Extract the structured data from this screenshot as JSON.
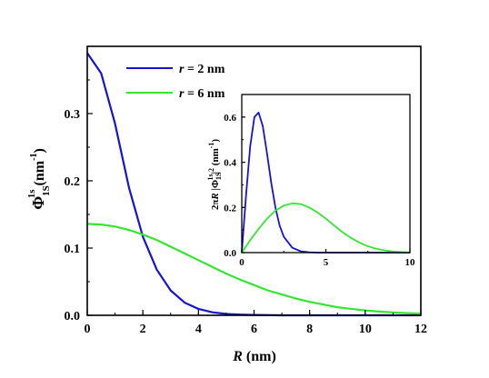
{
  "chart_data": [
    {
      "type": "line",
      "xlabel_italic": "R",
      "xlabel_rest": " (nm)",
      "ylabel_base": "Φ",
      "ylabel_sub": "1S",
      "ylabel_sup": "1s",
      "ylabel_unit_open": " (nm",
      "ylabel_unit_sup": "-1",
      "ylabel_unit_close": ")",
      "xlim": [
        0,
        12
      ],
      "ylim": [
        0,
        0.4
      ],
      "xticks": [
        "0",
        "2",
        "4",
        "6",
        "8",
        "10",
        "12"
      ],
      "yticks": [
        "0.0",
        "0.1",
        "0.2",
        "0.3"
      ],
      "legend_position": "top-center",
      "series": [
        {
          "name_italic": "r",
          "name_rest": " = 2 nm",
          "color": "#1414d2",
          "x": [
            0,
            0.5,
            1,
            1.5,
            2,
            2.5,
            3,
            3.5,
            4,
            4.5,
            5,
            5.5,
            6,
            7,
            8,
            9,
            10,
            11,
            12
          ],
          "y": [
            0.39,
            0.36,
            0.285,
            0.19,
            0.117,
            0.068,
            0.037,
            0.019,
            0.0095,
            0.0045,
            0.002,
            0.001,
            0.0005,
            0,
            0,
            0,
            0,
            0,
            0
          ]
        },
        {
          "name_italic": "r",
          "name_rest": " = 6 nm",
          "color": "#32e632",
          "x": [
            0,
            0.5,
            1,
            1.5,
            2,
            2.5,
            3,
            3.5,
            4,
            4.5,
            5,
            5.5,
            6,
            6.5,
            7,
            7.5,
            8,
            8.5,
            9,
            9.5,
            10,
            10.5,
            11,
            11.5,
            12
          ],
          "y": [
            0.136,
            0.135,
            0.132,
            0.127,
            0.12,
            0.112,
            0.102,
            0.092,
            0.082,
            0.072,
            0.062,
            0.053,
            0.045,
            0.037,
            0.031,
            0.025,
            0.02,
            0.016,
            0.012,
            0.0095,
            0.0073,
            0.0056,
            0.0043,
            0.0033,
            0.0025
          ]
        }
      ]
    },
    {
      "type": "line",
      "inset": true,
      "ylabel_prefix": "2π",
      "ylabel_italic": "R",
      "ylabel_mid": " |Φ",
      "ylabel_sub": "1S",
      "ylabel_sup": "1s",
      "ylabel_bar_sup": "|",
      "ylabel_sq": "2",
      "ylabel_unit_open": " (nm",
      "ylabel_unit_sup": "-1",
      "ylabel_unit_close": ")",
      "xlim": [
        0,
        10
      ],
      "ylim": [
        0,
        0.7
      ],
      "xticks": [
        "0",
        "5",
        "10"
      ],
      "yticks": [
        "0.0",
        "0.2",
        "0.4",
        "0.6"
      ],
      "series": [
        {
          "color": "#1414d2",
          "x": [
            0,
            0.25,
            0.5,
            0.75,
            1.0,
            1.25,
            1.5,
            1.75,
            2.0,
            2.25,
            2.5,
            3.0,
            3.5,
            4.0,
            4.5,
            5.0,
            6,
            7,
            8,
            9,
            10
          ],
          "y": [
            0,
            0.25,
            0.47,
            0.6,
            0.62,
            0.56,
            0.44,
            0.31,
            0.2,
            0.12,
            0.07,
            0.022,
            0.006,
            0.0015,
            0,
            0,
            0,
            0,
            0,
            0,
            0
          ]
        },
        {
          "color": "#32e632",
          "x": [
            0,
            0.5,
            1,
            1.5,
            2,
            2.5,
            3,
            3.5,
            4,
            4.5,
            5,
            5.5,
            6,
            6.5,
            7,
            7.5,
            8,
            8.5,
            9,
            9.5,
            10
          ],
          "y": [
            0,
            0.055,
            0.105,
            0.15,
            0.186,
            0.208,
            0.218,
            0.215,
            0.2,
            0.178,
            0.15,
            0.12,
            0.09,
            0.065,
            0.044,
            0.028,
            0.017,
            0.01,
            0.005,
            0.0025,
            0.001
          ]
        }
      ]
    }
  ]
}
